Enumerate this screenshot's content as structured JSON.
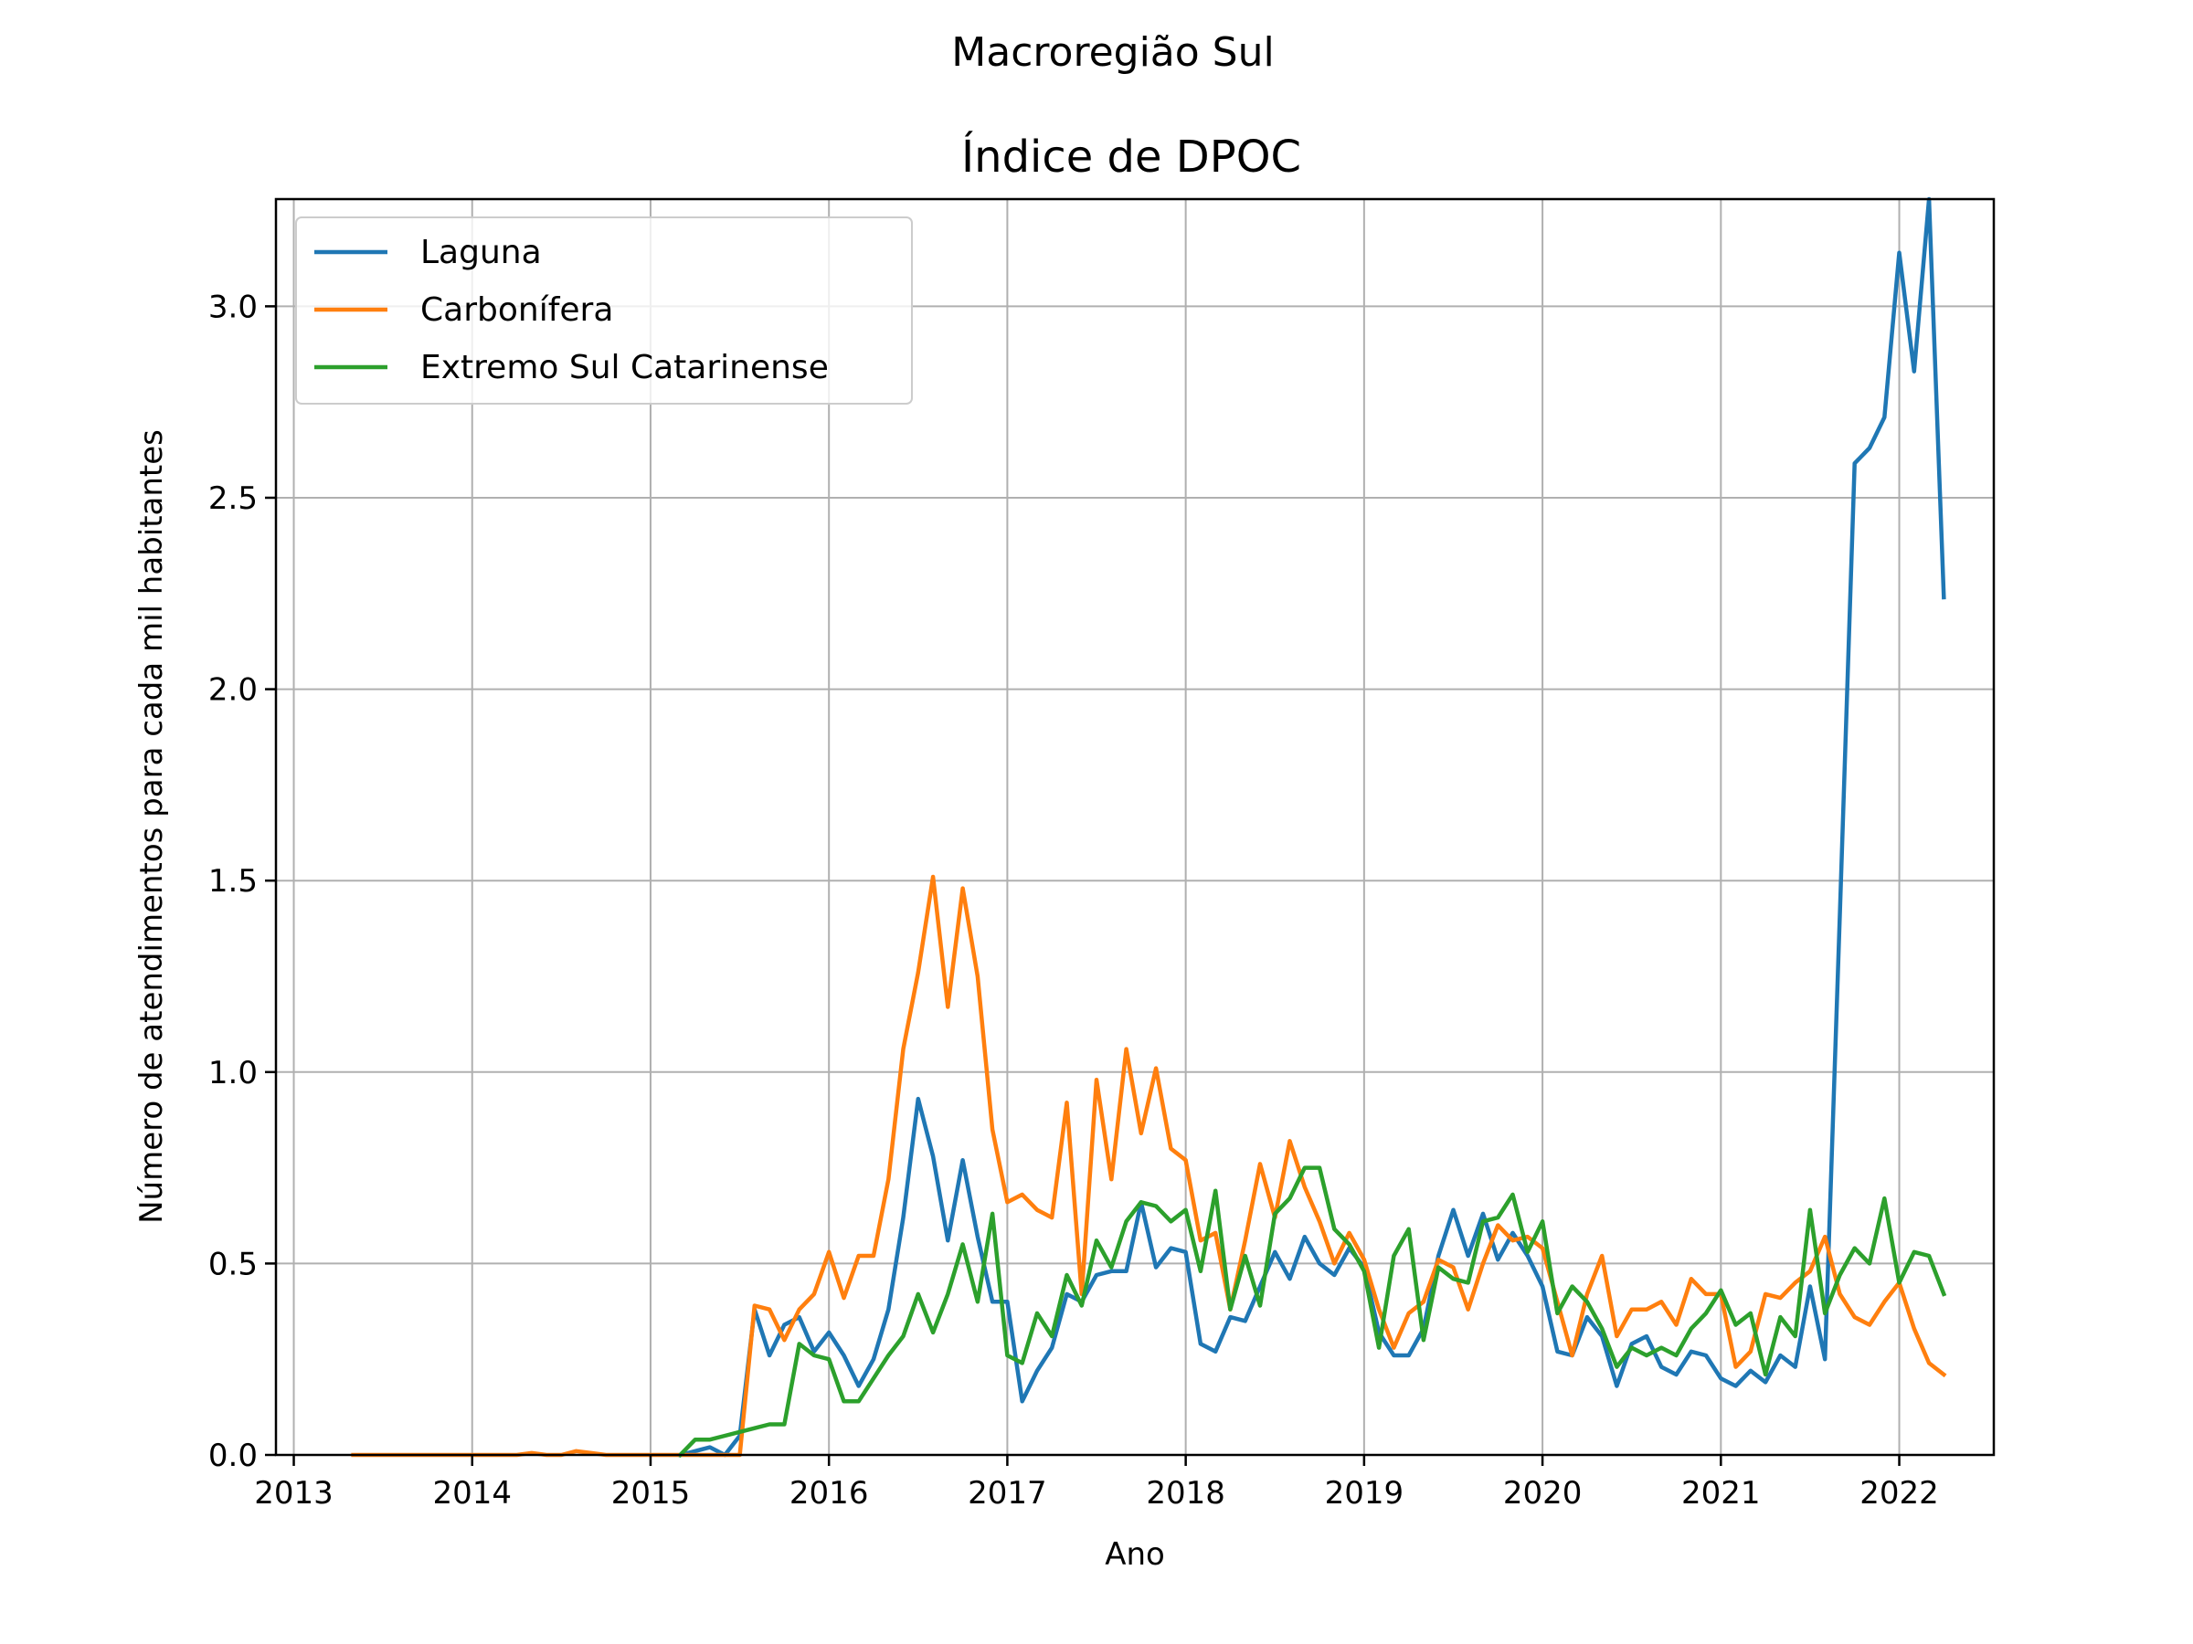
{
  "chart_data": {
    "type": "line",
    "suptitle": "Macroregião Sul",
    "title": "Índice de DPOC",
    "xlabel": "Ano",
    "ylabel": "Número de atendimentos para cada mil habitantes",
    "xlim": [
      2012.9,
      2022.53
    ],
    "ylim": [
      0,
      3.28
    ],
    "xticks": [
      "2013",
      "2014",
      "2015",
      "2016",
      "2017",
      "2018",
      "2019",
      "2020",
      "2021",
      "2022"
    ],
    "yticks": [
      "0.0",
      "0.5",
      "1.0",
      "1.5",
      "2.0",
      "2.5",
      "3.0"
    ],
    "grid": true,
    "legend_position": "upper-left",
    "start": "2013-05",
    "series": [
      {
        "name": "Laguna",
        "color": "#1f77b4",
        "values": [
          null,
          null,
          null,
          null,
          null,
          null,
          null,
          null,
          null,
          null,
          null,
          null,
          null,
          null,
          null,
          null,
          null,
          null,
          null,
          null,
          null,
          null,
          0.0,
          0.01,
          0.02,
          0.0,
          0.05,
          0.38,
          0.26,
          0.34,
          0.36,
          0.27,
          0.32,
          0.26,
          0.18,
          0.25,
          0.38,
          0.62,
          0.93,
          0.78,
          0.56,
          0.77,
          0.57,
          0.4,
          0.4,
          0.14,
          0.22,
          0.28,
          0.42,
          0.4,
          0.47,
          0.48,
          0.48,
          0.66,
          0.49,
          0.54,
          0.53,
          0.29,
          0.27,
          0.36,
          0.35,
          0.44,
          0.53,
          0.46,
          0.57,
          0.5,
          0.47,
          0.54,
          0.49,
          0.32,
          0.26,
          0.26,
          0.33,
          0.52,
          0.64,
          0.52,
          0.63,
          0.51,
          0.58,
          0.52,
          0.44,
          0.27,
          0.26,
          0.36,
          0.31,
          0.18,
          0.29,
          0.31,
          0.23,
          0.21,
          0.27,
          0.26,
          0.2,
          0.18,
          0.22,
          0.19,
          0.26,
          0.23,
          0.44,
          0.25,
          1.41,
          2.59,
          2.63,
          2.71,
          3.14,
          2.83,
          3.28,
          2.24
        ]
      },
      {
        "name": "Carbonífera",
        "color": "#ff7f0e",
        "values": [
          0.0,
          0.0,
          0.0,
          0.0,
          0.0,
          0.0,
          0.0,
          0.0,
          0.0,
          0.0,
          0.0,
          0.0,
          0.005,
          0.0,
          0.0,
          0.01,
          0.005,
          0.0,
          0.0,
          0.0,
          0.0,
          0.0,
          0.0,
          0.0,
          0.0,
          0.0,
          0.0,
          0.39,
          0.38,
          0.3,
          0.38,
          0.42,
          0.53,
          0.41,
          0.52,
          0.52,
          0.72,
          1.06,
          1.26,
          1.51,
          1.17,
          1.48,
          1.25,
          0.85,
          0.66,
          0.68,
          0.64,
          0.62,
          0.92,
          0.42,
          0.98,
          0.72,
          1.06,
          0.84,
          1.01,
          0.8,
          0.77,
          0.56,
          0.58,
          0.38,
          0.56,
          0.76,
          0.62,
          0.82,
          0.7,
          0.61,
          0.5,
          0.58,
          0.51,
          0.38,
          0.28,
          0.37,
          0.4,
          0.51,
          0.49,
          0.38,
          0.5,
          0.6,
          0.56,
          0.57,
          0.54,
          0.4,
          0.26,
          0.42,
          0.52,
          0.31,
          0.38,
          0.38,
          0.4,
          0.34,
          0.46,
          0.42,
          0.42,
          0.23,
          0.27,
          0.42,
          0.41,
          0.45,
          0.48,
          0.57,
          0.42,
          0.36,
          0.34,
          0.4,
          0.45,
          0.33,
          0.24,
          0.21
        ]
      },
      {
        "name": "Extremo Sul Catarinense",
        "color": "#2ca02c",
        "values": [
          null,
          null,
          null,
          null,
          null,
          null,
          null,
          null,
          null,
          null,
          null,
          null,
          null,
          null,
          null,
          null,
          null,
          null,
          null,
          null,
          null,
          null,
          0.0,
          0.04,
          0.04,
          0.05,
          0.06,
          0.07,
          0.08,
          0.08,
          0.29,
          0.26,
          0.25,
          0.14,
          0.14,
          0.2,
          0.26,
          0.31,
          0.42,
          0.32,
          0.42,
          0.55,
          0.4,
          0.63,
          0.26,
          0.24,
          0.37,
          0.31,
          0.47,
          0.39,
          0.56,
          0.49,
          0.61,
          0.66,
          0.65,
          0.61,
          0.64,
          0.48,
          0.69,
          0.38,
          0.52,
          0.39,
          0.63,
          0.67,
          0.75,
          0.75,
          0.59,
          0.55,
          0.48,
          0.28,
          0.52,
          0.59,
          0.3,
          0.49,
          0.46,
          0.45,
          0.61,
          0.62,
          0.68,
          0.53,
          0.61,
          0.37,
          0.44,
          0.4,
          0.33,
          0.23,
          0.28,
          0.26,
          0.28,
          0.26,
          0.33,
          0.37,
          0.43,
          0.34,
          0.37,
          0.21,
          0.36,
          0.31,
          0.64,
          0.37,
          0.47,
          0.54,
          0.5,
          0.67,
          0.45,
          0.53,
          0.52,
          0.42
        ]
      }
    ]
  }
}
